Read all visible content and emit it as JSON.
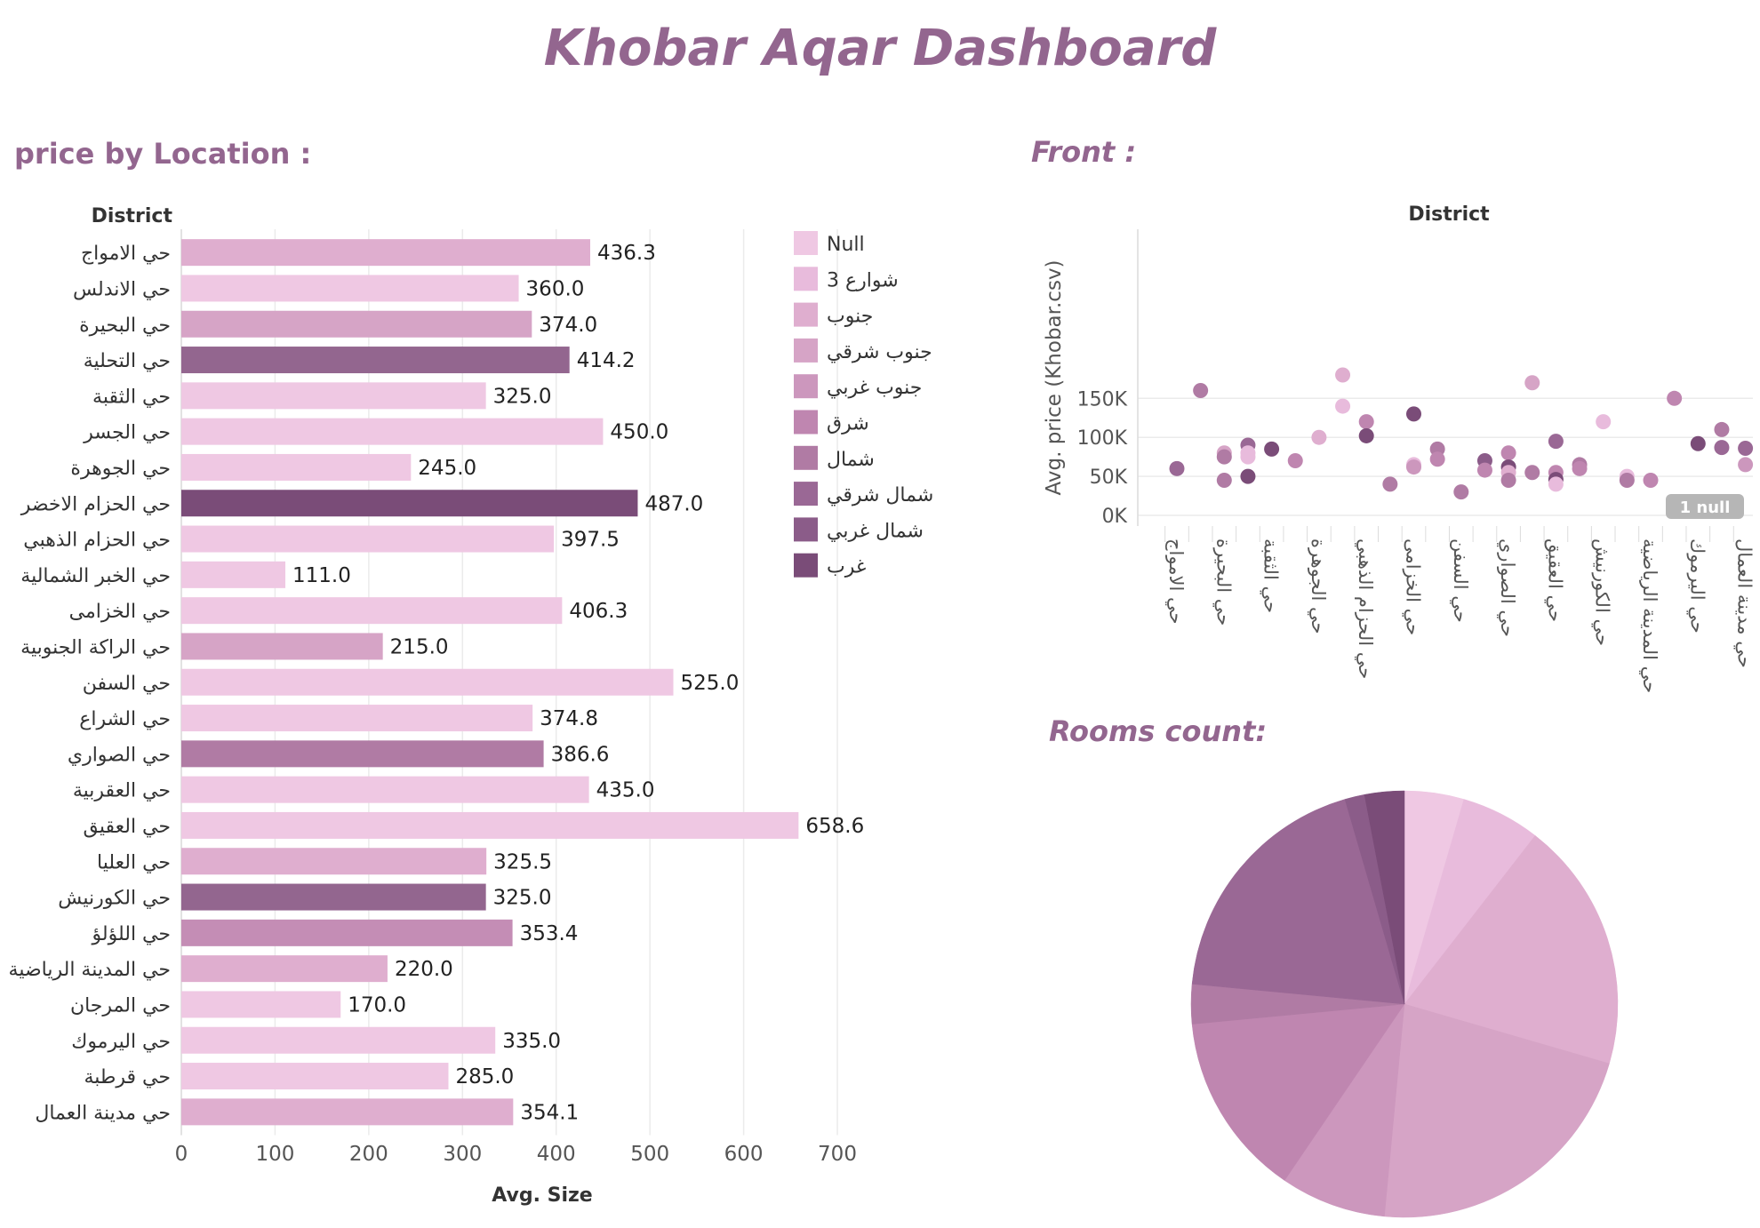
{
  "dashboard_title": "Khobar Aqar Dashboard",
  "bar_section_title": "price by Location :",
  "scatter_section_title": "Front :",
  "pie_section_title": "Rooms count:",
  "colors": {
    "title": "#93668f",
    "palette": [
      "#efc8e3",
      "#e8bbdc",
      "#dfaecf",
      "#d6a4c6",
      "#cc97bd",
      "#bf86b0",
      "#b07ba4",
      "#9a6895",
      "#8b5c89",
      "#7a4c78"
    ]
  },
  "chart_data": [
    {
      "type": "bar",
      "orientation": "horizontal",
      "ylabel": "District",
      "xlabel": "Avg. Size",
      "xlim": [
        0,
        775
      ],
      "xticks": [
        "0",
        "100",
        "200",
        "300",
        "400",
        "500",
        "600",
        "700"
      ],
      "grid": true,
      "legend_position": "right",
      "legend": [
        "Null",
        "3 شوارع",
        "جنوب",
        "جنوب شرقي",
        "جنوب غربي",
        "شرق",
        "شمال",
        "شمال شرقي",
        "شمال غربي",
        "غرب"
      ],
      "categories": [
        "حي الامواج",
        "حي الاندلس",
        "حي البحيرة",
        "حي التحلية",
        "حي الثقبة",
        "حي الجسر",
        "حي الجوهرة",
        "حي الحزام الاخضر",
        "حي الحزام الذهبي",
        "حي الخبر الشمالية",
        "حي الخزامى",
        "حي الراكة الجنوبية",
        "حي السفن",
        "حي الشراع",
        "حي الصواري",
        "حي العقربية",
        "حي العقيق",
        "حي العليا",
        "حي الكورنيش",
        "حي اللؤلؤ",
        "حي المدينة الرياضية",
        "حي المرجان",
        "حي اليرموك",
        "حي قرطبة",
        "حي مدينة العمال"
      ],
      "values": [
        436.3,
        360.0,
        374.0,
        414.2,
        325.0,
        450.0,
        245.0,
        487.0,
        397.5,
        111.0,
        406.3,
        215.0,
        525.0,
        374.8,
        386.6,
        435.0,
        658.6,
        325.5,
        325.0,
        353.4,
        220.0,
        170.0,
        335.0,
        285.0,
        354.1
      ],
      "value_labels": [
        "436.3",
        "360.0",
        "374.0",
        "414.2",
        "325.0",
        "450.0",
        "245.0",
        "487.0",
        "397.5",
        "111.0",
        "406.3",
        "215.0",
        "525.0",
        "374.8",
        "386.6",
        "435.0",
        "658.6",
        "325.5",
        "325.0",
        "353.4",
        "220.0",
        "170.0",
        "335.0",
        "285.0",
        "354.1"
      ],
      "colors": [
        "#dfaecf",
        "#efc8e3",
        "#d6a4c6",
        "#93668f",
        "#efc8e3",
        "#efc8e3",
        "#efc8e3",
        "#7a4c78",
        "#efc8e3",
        "#efc8e3",
        "#efc8e3",
        "#d6a4c6",
        "#efc8e3",
        "#efc8e3",
        "#b07ba4",
        "#efc8e3",
        "#efc8e3",
        "#dfaecf",
        "#93668f",
        "#c48db5",
        "#dfaecf",
        "#efc8e3",
        "#efc8e3",
        "#efc8e3",
        "#dfaecf"
      ]
    },
    {
      "type": "scatter",
      "title": "District",
      "ylabel": "Avg. price (Khobar.csv)",
      "ylim": [
        0,
        180000
      ],
      "yticks": [
        {
          "v": 0,
          "label": "0K"
        },
        {
          "v": 50000,
          "label": "50K"
        },
        {
          "v": 100000,
          "label": "100K"
        },
        {
          "v": 150000,
          "label": "150K"
        }
      ],
      "grid": true,
      "null_badge": "1 null",
      "categories": [
        "حي الامواج",
        "حي البحيرة",
        "حي الثقبة",
        "حي الجوهرة",
        "حي الحزام الذهبي",
        "حي الخزامى",
        "حي السفن",
        "حي الصواري",
        "حي العقيق",
        "حي الكورنيش",
        "حي المدينة الرياضية",
        "حي اليرموك",
        "حي مدينة العمال"
      ],
      "points": [
        {
          "x": 0,
          "y": 60000,
          "c": 7
        },
        {
          "x": 0.5,
          "y": 160000,
          "c": 6
        },
        {
          "x": 1,
          "y": 80000,
          "c": 3
        },
        {
          "x": 1,
          "y": 75000,
          "c": 6
        },
        {
          "x": 1,
          "y": 45000,
          "c": 6
        },
        {
          "x": 1.5,
          "y": 90000,
          "c": 7
        },
        {
          "x": 1.5,
          "y": 80000,
          "c": 1
        },
        {
          "x": 1.5,
          "y": 75000,
          "c": 1
        },
        {
          "x": 1.5,
          "y": 50000,
          "c": 9
        },
        {
          "x": 2,
          "y": 85000,
          "c": 9
        },
        {
          "x": 2.5,
          "y": 70000,
          "c": 5
        },
        {
          "x": 3,
          "y": 100000,
          "c": 2
        },
        {
          "x": 3.5,
          "y": 180000,
          "c": 2
        },
        {
          "x": 3.5,
          "y": 140000,
          "c": 1
        },
        {
          "x": 4,
          "y": 120000,
          "c": 5
        },
        {
          "x": 4,
          "y": 102000,
          "c": 9
        },
        {
          "x": 4.5,
          "y": 40000,
          "c": 6
        },
        {
          "x": 5,
          "y": 130000,
          "c": 9
        },
        {
          "x": 5,
          "y": 65000,
          "c": 1
        },
        {
          "x": 5,
          "y": 62000,
          "c": 4
        },
        {
          "x": 5.5,
          "y": 85000,
          "c": 6
        },
        {
          "x": 5.5,
          "y": 72000,
          "c": 5
        },
        {
          "x": 6,
          "y": 30000,
          "c": 6
        },
        {
          "x": 6.5,
          "y": 70000,
          "c": 8
        },
        {
          "x": 6.5,
          "y": 58000,
          "c": 5
        },
        {
          "x": 7,
          "y": 80000,
          "c": 5
        },
        {
          "x": 7,
          "y": 62000,
          "c": 9
        },
        {
          "x": 7,
          "y": 55000,
          "c": 2
        },
        {
          "x": 7,
          "y": 45000,
          "c": 6
        },
        {
          "x": 7.5,
          "y": 55000,
          "c": 6
        },
        {
          "x": 7.5,
          "y": 170000,
          "c": 3
        },
        {
          "x": 8,
          "y": 95000,
          "c": 7
        },
        {
          "x": 8,
          "y": 55000,
          "c": 5
        },
        {
          "x": 8,
          "y": 46000,
          "c": 9
        },
        {
          "x": 8,
          "y": 40000,
          "c": 1
        },
        {
          "x": 8.5,
          "y": 65000,
          "c": 6
        },
        {
          "x": 8.5,
          "y": 60000,
          "c": 5
        },
        {
          "x": 9,
          "y": 120000,
          "c": 1
        },
        {
          "x": 9.5,
          "y": 50000,
          "c": 1
        },
        {
          "x": 9.5,
          "y": 45000,
          "c": 6
        },
        {
          "x": 10,
          "y": 45000,
          "c": 5
        },
        {
          "x": 10.5,
          "y": 150000,
          "c": 5
        },
        {
          "x": 11,
          "y": 92000,
          "c": 9
        },
        {
          "x": 11.5,
          "y": 110000,
          "c": 6
        },
        {
          "x": 11.5,
          "y": 87000,
          "c": 7
        },
        {
          "x": 12,
          "y": 86000,
          "c": 7
        },
        {
          "x": 12,
          "y": 65000,
          "c": 4
        }
      ]
    },
    {
      "type": "pie",
      "values": [
        4.5,
        6,
        19,
        22,
        8,
        14,
        3,
        19,
        1.5,
        3
      ],
      "colors": [
        "#efc8e3",
        "#e8bbdc",
        "#dfaecf",
        "#d6a4c6",
        "#cc97bd",
        "#bf86b0",
        "#b07ba4",
        "#9a6895",
        "#8b5c89",
        "#7a4c78"
      ]
    }
  ]
}
